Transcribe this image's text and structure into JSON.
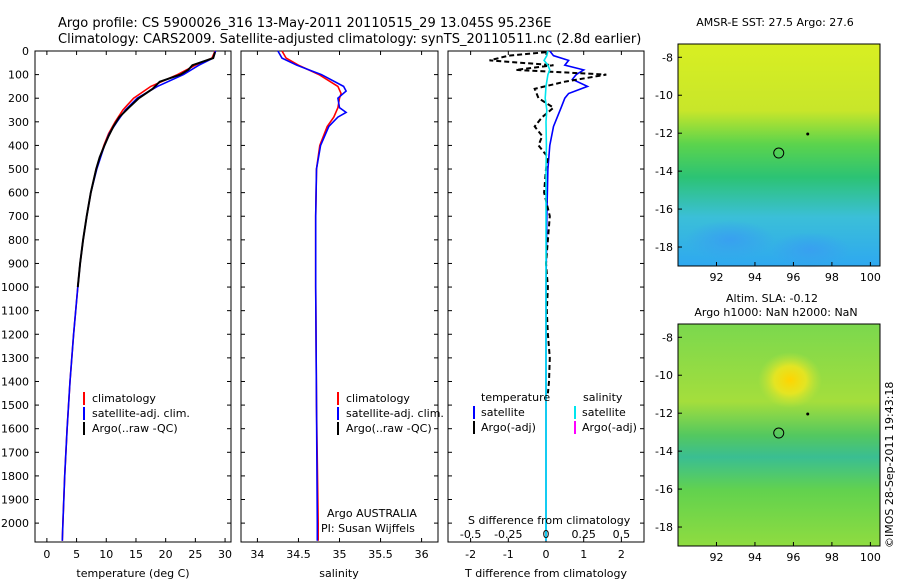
{
  "header": {
    "title_line1": "Argo profile: CS 5900026_316 13-May-2011 20110515_29 13.045S 95.236E",
    "title_line2": "Climatology: CARS2009. Satellite-adjusted climatology: synTS_20110511.nc (2.8d earlier)"
  },
  "colors": {
    "climatology": "#ff0000",
    "satellite": "#0000ff",
    "argo": "#000000",
    "s_satellite": "#00e5ee",
    "s_argo": "#ff00ff"
  },
  "chart_data": [
    {
      "type": "line",
      "panel": "temperature",
      "xlabel": "temperature (deg C)",
      "ylabel": "",
      "xlim": [
        -2,
        31
      ],
      "ylim": [
        2080,
        0
      ],
      "xticks": [
        "0",
        "5",
        "10",
        "15",
        "20",
        "25",
        "30"
      ],
      "yticks": [
        "0",
        "100",
        "200",
        "300",
        "400",
        "500",
        "600",
        "700",
        "800",
        "900",
        "1000",
        "1100",
        "1200",
        "1300",
        "1400",
        "1500",
        "1600",
        "1700",
        "1800",
        "1900",
        "2000"
      ],
      "legend": [
        "climatology",
        "satellite-adj. clim.",
        "Argo(..raw -QC)"
      ],
      "series": [
        {
          "name": "climatology",
          "depth": [
            0,
            30,
            60,
            100,
            150,
            200,
            250,
            300,
            350,
            400,
            500,
            600,
            700,
            800,
            900,
            1000,
            1200,
            1400,
            1600,
            1800,
            2000,
            2075
          ],
          "values": [
            28.3,
            27.8,
            25,
            22,
            17.5,
            14.6,
            12.8,
            11.5,
            10.4,
            9.6,
            8.3,
            7.4,
            6.7,
            6.1,
            5.6,
            5.2,
            4.5,
            3.9,
            3.4,
            3.0,
            2.7,
            2.6
          ]
        },
        {
          "name": "satellite-adj. clim.",
          "depth": [
            0,
            30,
            60,
            100,
            150,
            200,
            250,
            300,
            350,
            400,
            500,
            600,
            700,
            800,
            900,
            1000,
            1200,
            1400,
            1600,
            1800,
            2000,
            2075
          ],
          "values": [
            28.4,
            28,
            25.6,
            23,
            18.6,
            15.2,
            13.2,
            11.8,
            10.5,
            9.7,
            8.4,
            7.4,
            6.7,
            6.1,
            5.6,
            5.2,
            4.5,
            3.9,
            3.4,
            3.0,
            2.7,
            2.6
          ]
        },
        {
          "name": "Argo(..raw -QC)",
          "depth": [
            5,
            30,
            60,
            80,
            100,
            130,
            160,
            200,
            240,
            280,
            320,
            360,
            400,
            450,
            500,
            600,
            700,
            800,
            900,
            1000
          ],
          "values": [
            28.3,
            28,
            24.5,
            23.8,
            22.5,
            19,
            17.8,
            15.5,
            13.8,
            12.2,
            11.2,
            10.4,
            9.7,
            8.9,
            8.3,
            7.4,
            6.7,
            6.1,
            5.6,
            5.2
          ]
        }
      ]
    },
    {
      "type": "line",
      "panel": "salinity",
      "xlabel": "salinity",
      "ylabel": "",
      "xlim": [
        33.8,
        36.2
      ],
      "ylim": [
        2080,
        0
      ],
      "xticks": [
        "34",
        "34.5",
        "35",
        "35.5",
        "36"
      ],
      "legend": [
        "climatology",
        "satellite-adj. clim.",
        "Argo(..raw -QC)"
      ],
      "series": [
        {
          "name": "climatology",
          "depth": [
            0,
            30,
            60,
            100,
            150,
            180,
            200,
            240,
            280,
            320,
            400,
            500,
            700,
            1000,
            1500,
            2000,
            2075
          ],
          "values": [
            34.3,
            34.35,
            34.5,
            34.75,
            34.98,
            35.02,
            35.0,
            34.98,
            34.93,
            34.85,
            34.76,
            34.72,
            34.71,
            34.71,
            34.72,
            34.74,
            34.74
          ]
        },
        {
          "name": "satellite-adj. clim.",
          "depth": [
            0,
            30,
            60,
            100,
            150,
            170,
            200,
            240,
            260,
            280,
            320,
            400,
            500,
            700,
            1000,
            1500,
            2000,
            2075
          ],
          "values": [
            34.25,
            34.3,
            34.48,
            34.78,
            35.05,
            35.08,
            34.98,
            35.0,
            35.08,
            34.98,
            34.87,
            34.77,
            34.72,
            34.71,
            34.71,
            34.72,
            34.73,
            34.73
          ]
        }
      ],
      "annotations": [
        "Argo AUSTRALIA",
        "PI: Susan Wijffels"
      ]
    },
    {
      "type": "line",
      "panel": "difference",
      "xlabel": "T difference from climatology",
      "x2label": "S difference from climatology",
      "xlim": [
        -2.6,
        2.6
      ],
      "ylim": [
        2080,
        0
      ],
      "xticks": [
        "-2",
        "-1",
        "0",
        "1",
        "2"
      ],
      "x2ticks": [
        "-0.5",
        "-0.25",
        "0",
        "0.25",
        "0.5"
      ],
      "legend_headers": [
        "temperature",
        "salinity"
      ],
      "legend": [
        "satellite",
        "Argo(-adj)",
        "satellite",
        "Argo(-adj)"
      ],
      "series": [
        {
          "name": "satellite",
          "quantity": "temperature",
          "depth": [
            0,
            20,
            40,
            60,
            80,
            100,
            120,
            150,
            180,
            200,
            240,
            280,
            320,
            400,
            500,
            700,
            1000,
            1500,
            2000,
            2075
          ],
          "values": [
            0.1,
            0.2,
            0.6,
            0.5,
            1.0,
            0.8,
            0.7,
            1.1,
            0.6,
            0.5,
            0.4,
            0.3,
            0.2,
            0.1,
            0.05,
            0.02,
            0.0,
            0.0,
            0.0,
            0.0
          ]
        },
        {
          "name": "Argo(-adj)",
          "quantity": "temperature",
          "depth": [
            5,
            20,
            40,
            60,
            80,
            100,
            130,
            160,
            200,
            240,
            280,
            320,
            360,
            400,
            450,
            500,
            600,
            700,
            800,
            900,
            1000,
            1100,
            1200,
            1300,
            1400,
            1450
          ],
          "values": [
            0,
            -1.0,
            -1.5,
            0.2,
            -0.8,
            1.6,
            0.5,
            -0.3,
            -0.2,
            0.2,
            -0.1,
            -0.3,
            -0.1,
            -0.2,
            0.05,
            0.0,
            -0.05,
            0.1,
            0.05,
            0.0,
            0.05,
            0.02,
            0.05,
            0.1,
            0.08,
            0.05
          ]
        },
        {
          "name": "satellite",
          "quantity": "salinity",
          "depth": [
            0,
            20,
            40,
            60,
            80,
            100,
            150,
            200,
            250,
            300,
            400,
            500,
            700,
            1000,
            1500,
            2000,
            2075
          ],
          "values": [
            0.05,
            0.02,
            -0.05,
            0.05,
            0.1,
            0.05,
            0.0,
            -0.02,
            0.02,
            0.0,
            0.01,
            0.0,
            0.0,
            0.0,
            0.0,
            0.0,
            0.0
          ]
        }
      ]
    },
    {
      "type": "heatmap",
      "panel": "sst_map",
      "title": "AMSR-E SST: 27.5 Argo: 27.6",
      "xlim": [
        90,
        100.5
      ],
      "ylim": [
        -19,
        -7.3
      ],
      "xticks": [
        "92",
        "94",
        "96",
        "98",
        "100"
      ],
      "yticks": [
        "-8",
        "-10",
        "-12",
        "-14",
        "-16",
        "-18"
      ],
      "marker": {
        "lon": 95.236,
        "lat": -13.045
      }
    },
    {
      "type": "heatmap",
      "panel": "sla_map",
      "title": "Altim. SLA: -0.12",
      "subtitle": "Argo h1000: NaN h2000: NaN",
      "xlim": [
        90,
        100.5
      ],
      "ylim": [
        -19,
        -7.3
      ],
      "xticks": [
        "92",
        "94",
        "96",
        "98",
        "100"
      ],
      "yticks": [
        "-8",
        "-10",
        "-12",
        "-14",
        "-16",
        "-18"
      ],
      "marker": {
        "lon": 95.236,
        "lat": -13.045
      }
    }
  ],
  "footer_stamp": "©IMOS 28-Sep-2011 19:43:18"
}
